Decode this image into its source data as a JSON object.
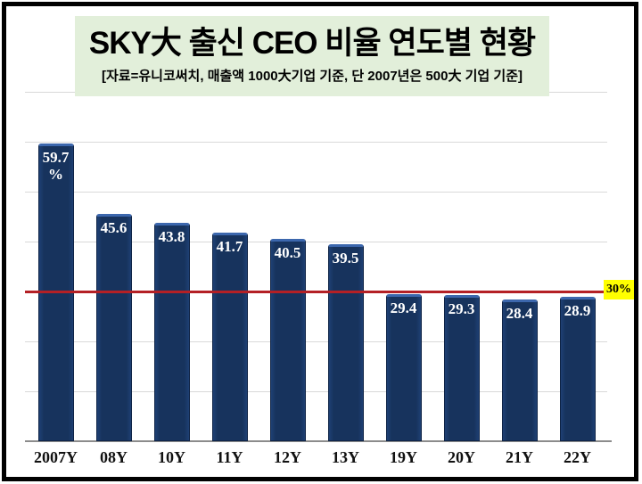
{
  "page": {
    "background": "#ffffff",
    "frame_color": "#000000"
  },
  "header": {
    "background": "#e2efda"
  },
  "chart_data": {
    "type": "bar",
    "title": "SKY大 출신 CEO 비율 연도별 현황",
    "subtitle": "[자료=유니코써치, 매출액 1000大기업 기준, 단 2007년은 500大 기업 기준]",
    "categories": [
      "2007Y",
      "08Y",
      "10Y",
      "11Y",
      "12Y",
      "13Y",
      "19Y",
      "20Y",
      "21Y",
      "22Y"
    ],
    "values": [
      59.7,
      45.6,
      43.8,
      41.7,
      40.5,
      39.5,
      29.4,
      29.3,
      28.4,
      28.9
    ],
    "value_labels": [
      [
        "59.7",
        "%"
      ],
      [
        "45.6"
      ],
      [
        "43.8"
      ],
      [
        "41.7"
      ],
      [
        "40.5"
      ],
      [
        "39.5"
      ],
      [
        "29.4"
      ],
      [
        "29.3"
      ],
      [
        "28.4"
      ],
      [
        "28.9"
      ]
    ],
    "xlabel": "",
    "ylabel": "",
    "ylim": [
      0,
      70
    ],
    "grid": {
      "show": true,
      "step": 10,
      "color": "#d9d9d9"
    },
    "legend": null,
    "bar_color": "#17335d",
    "bar_color_light": "#1e4074",
    "bar_label_color": "#ffffff",
    "axis_line_color": "#8c8c8c",
    "reference_line": {
      "value": 30,
      "color": "#b42025",
      "label": "30%",
      "label_bg": "#ffff00",
      "label_color": "#000000"
    }
  }
}
